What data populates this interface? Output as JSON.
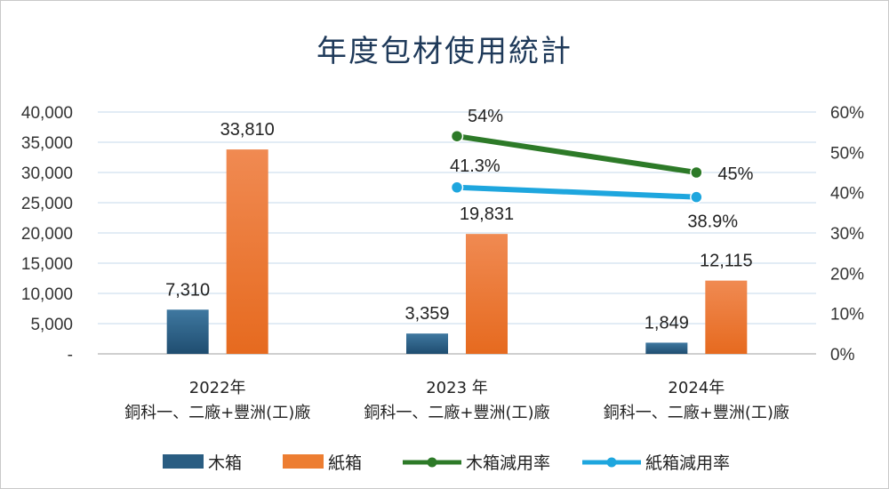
{
  "chart_data": {
    "type": "bar",
    "title": "年度包材使用統計",
    "categories": [
      [
        "2022年",
        "銅科一、二廠+豐洲(工)廠"
      ],
      [
        "2023 年",
        "銅科一、二廠+豐洲(工)廠"
      ],
      [
        "2024年",
        "銅科一、二廠+豐洲(工)廠"
      ]
    ],
    "y_left": {
      "ylim": [
        0,
        40000
      ],
      "ticks": [
        0,
        5000,
        10000,
        15000,
        20000,
        25000,
        30000,
        35000,
        40000
      ],
      "tick_labels": [
        "-",
        "5,000",
        "10,000",
        "15,000",
        "20,000",
        "25,000",
        "30,000",
        "35,000",
        "40,000"
      ]
    },
    "y_right": {
      "ylim": [
        0,
        60
      ],
      "ticks": [
        0,
        10,
        20,
        30,
        40,
        50,
        60
      ],
      "tick_labels": [
        "0%",
        "10%",
        "20%",
        "30%",
        "40%",
        "50%",
        "60%"
      ]
    },
    "grid": true,
    "legend_position": "bottom",
    "series": [
      {
        "name": "木箱",
        "kind": "bar",
        "axis": "left",
        "color": "#2a5d82",
        "values": [
          7310,
          3359,
          1849
        ],
        "labels": [
          "7,310",
          "3,359",
          "1,849"
        ]
      },
      {
        "name": "紙箱",
        "kind": "bar",
        "axis": "left",
        "color": "#ed7d31",
        "values": [
          33810,
          19831,
          12115
        ],
        "labels": [
          "33,810",
          "19,831",
          "12,115"
        ]
      },
      {
        "name": "木箱減用率",
        "kind": "line",
        "axis": "right",
        "color": "#2d7a28",
        "values": [
          null,
          54,
          45
        ],
        "labels": [
          "",
          "54%",
          "45%"
        ]
      },
      {
        "name": "紙箱減用率",
        "kind": "line",
        "axis": "right",
        "color": "#1ea6de",
        "values": [
          null,
          41.3,
          38.9
        ],
        "labels": [
          "",
          "41.3%",
          "38.9%"
        ]
      }
    ]
  }
}
